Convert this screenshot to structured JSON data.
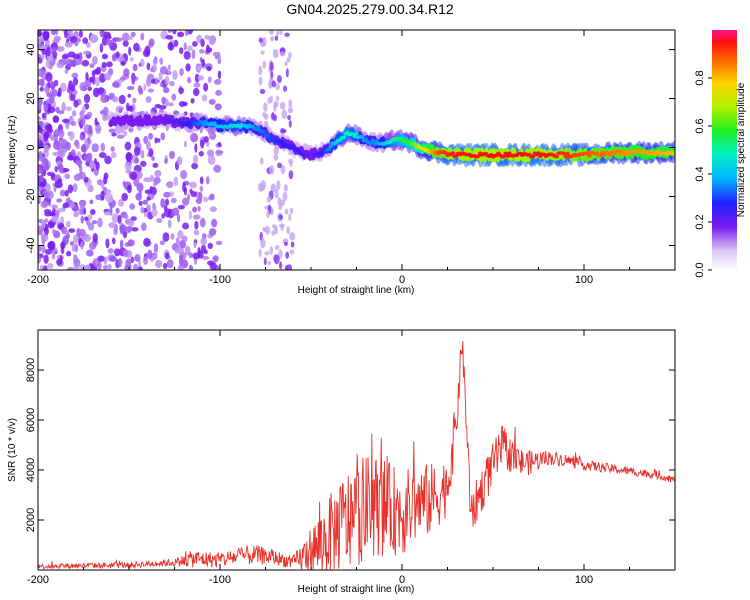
{
  "title": "GN04.2025.279.00.34.R12",
  "chart_data": [
    {
      "type": "heatmap",
      "name": "spectrogram",
      "xlabel": "Height of straight line (km)",
      "ylabel": "Frequency (Hz)",
      "xlim": [
        -200,
        150
      ],
      "ylim": [
        -50,
        48
      ],
      "xticks": [
        -200,
        -100,
        0,
        100
      ],
      "yticks": [
        -40,
        -20,
        0,
        20,
        40
      ],
      "colorbar": {
        "label": "Normalized spectral amplitude",
        "range": [
          0,
          1
        ],
        "ticks": [
          "0.0",
          "0.2",
          "0.4",
          "0.6",
          "0.8"
        ],
        "tick_values": [
          0.0,
          0.2,
          0.4,
          0.6,
          0.8
        ]
      },
      "ridge": {
        "description": "dominant frequency vs height",
        "x": [
          -200,
          -160,
          -140,
          -130,
          -120,
          -110,
          -100,
          -90,
          -80,
          -70,
          -60,
          -55,
          -50,
          -45,
          -40,
          -35,
          -30,
          -25,
          -20,
          -15,
          -10,
          -5,
          0,
          5,
          10,
          15,
          20,
          30,
          40,
          60,
          80,
          100,
          120,
          150
        ],
        "y": [
          12,
          11,
          11,
          11,
          10,
          10,
          9,
          9,
          8,
          3,
          0,
          -2,
          -3,
          -2,
          0,
          3,
          6,
          5,
          3,
          2,
          2,
          3,
          3,
          2,
          0,
          -1,
          -2,
          -3,
          -3,
          -3,
          -3,
          -3,
          -2,
          -2
        ],
        "amplitude": [
          0.05,
          0.1,
          0.15,
          0.2,
          0.25,
          0.35,
          0.4,
          0.45,
          0.35,
          0.3,
          0.25,
          0.25,
          0.2,
          0.25,
          0.35,
          0.45,
          0.5,
          0.45,
          0.35,
          0.35,
          0.4,
          0.5,
          0.55,
          0.6,
          0.7,
          0.8,
          0.9,
          0.95,
          0.95,
          0.95,
          0.95,
          0.9,
          0.85,
          0.8
        ]
      }
    },
    {
      "type": "line",
      "name": "snr",
      "xlabel": "Height of straight line (km)",
      "ylabel": "SNR (10 * v/v)",
      "xlim": [
        -200,
        150
      ],
      "ylim": [
        0,
        9600
      ],
      "xticks": [
        -200,
        -100,
        0,
        100
      ],
      "yticks": [
        2000,
        4000,
        6000,
        8000
      ],
      "color": "#e8302a",
      "envelope": {
        "x": [
          -200,
          -150,
          -125,
          -115,
          -100,
          -90,
          -80,
          -70,
          -60,
          -55,
          -45,
          -40,
          -35,
          -30,
          -25,
          -20,
          -15,
          -10,
          -5,
          0,
          5,
          10,
          15,
          20,
          25,
          30,
          33,
          35,
          38,
          40,
          45,
          50,
          55,
          60,
          65,
          70,
          75,
          80,
          90,
          100,
          110,
          120,
          130,
          140,
          150
        ],
        "mean": [
          150,
          200,
          300,
          450,
          400,
          550,
          600,
          500,
          300,
          500,
          1000,
          1400,
          1700,
          1900,
          2200,
          2400,
          2600,
          2500,
          2400,
          2300,
          2500,
          2700,
          2800,
          3000,
          3400,
          6000,
          9200,
          6500,
          2000,
          2600,
          3400,
          4200,
          4900,
          4600,
          4300,
          4300,
          4400,
          4500,
          4400,
          4200,
          4100,
          4000,
          3900,
          3800,
          3600
        ],
        "spread": [
          100,
          120,
          150,
          350,
          300,
          350,
          400,
          300,
          250,
          600,
          1400,
          1600,
          1800,
          2200,
          2000,
          2200,
          2000,
          2000,
          1800,
          1800,
          1600,
          1500,
          1500,
          1300,
          1200,
          1000,
          500,
          900,
          900,
          900,
          900,
          900,
          900,
          700,
          600,
          500,
          400,
          300,
          250,
          200,
          200,
          180,
          170,
          160,
          150
        ]
      }
    }
  ]
}
